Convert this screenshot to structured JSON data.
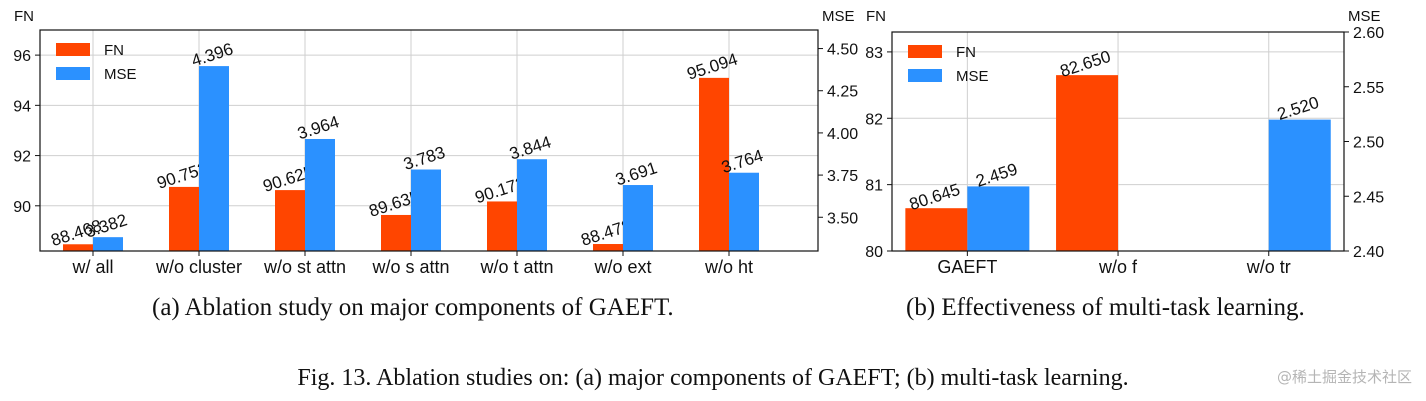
{
  "colors": {
    "fn": "#ff4500",
    "mse": "#2b91ff",
    "grid": "#cfcfcf",
    "axis": "#111111"
  },
  "chart_data": [
    {
      "type": "bar",
      "caption": "(a) Ablation study on major components of GAEFT.",
      "left_axis_label": "FN",
      "right_axis_label": "MSE",
      "categories": [
        "w/ all",
        "w/o cluster",
        "w/o st attn",
        "w/o s attn",
        "w/o t attn",
        "w/o ext",
        "w/o ht"
      ],
      "series": [
        {
          "name": "FN",
          "axis": "left",
          "values": [
            88.468,
            90.752,
            90.625,
            89.635,
            90.173,
            88.478,
            95.094
          ],
          "labels": [
            "88.468",
            "90.752",
            "90.625",
            "89.635",
            "90.173",
            "88.478",
            "95.094"
          ]
        },
        {
          "name": "MSE",
          "axis": "right",
          "values": [
            3.382,
            4.396,
            3.964,
            3.783,
            3.844,
            3.691,
            3.764
          ],
          "labels": [
            "3.382",
            "4.396",
            "3.964",
            "3.783",
            "3.844",
            "3.691",
            "3.764"
          ]
        }
      ],
      "left_ylim": [
        88.2,
        97.0
      ],
      "left_ticks": [
        90,
        92,
        94,
        96
      ],
      "right_ylim": [
        3.3,
        4.61
      ],
      "right_ticks": [
        "3.50",
        "3.75",
        "4.00",
        "4.25",
        "4.50"
      ],
      "legend": "top-left",
      "grid": true
    },
    {
      "type": "bar",
      "caption": "(b) Effectiveness of multi-task learning.",
      "left_axis_label": "FN",
      "right_axis_label": "MSE",
      "categories": [
        "GAEFT",
        "w/o f",
        "w/o tr"
      ],
      "series": [
        {
          "name": "FN",
          "axis": "left",
          "values": [
            80.645,
            82.65,
            null
          ],
          "labels": [
            "80.645",
            "82.650",
            ""
          ]
        },
        {
          "name": "MSE",
          "axis": "right",
          "values": [
            2.459,
            null,
            2.52
          ],
          "labels": [
            "2.459",
            "",
            "2.520"
          ]
        }
      ],
      "left_ylim": [
        80.0,
        83.3
      ],
      "left_ticks": [
        80,
        81,
        82,
        83
      ],
      "right_ylim": [
        2.4,
        2.6
      ],
      "right_ticks": [
        "2.40",
        "2.45",
        "2.50",
        "2.55",
        "2.60"
      ],
      "legend": "top-left",
      "grid": true
    }
  ],
  "figure_caption": "Fig. 13.  Ablation studies on: (a) major components of GAEFT; (b) multi-task learning.",
  "watermark": "@稀土掘金技术社区"
}
